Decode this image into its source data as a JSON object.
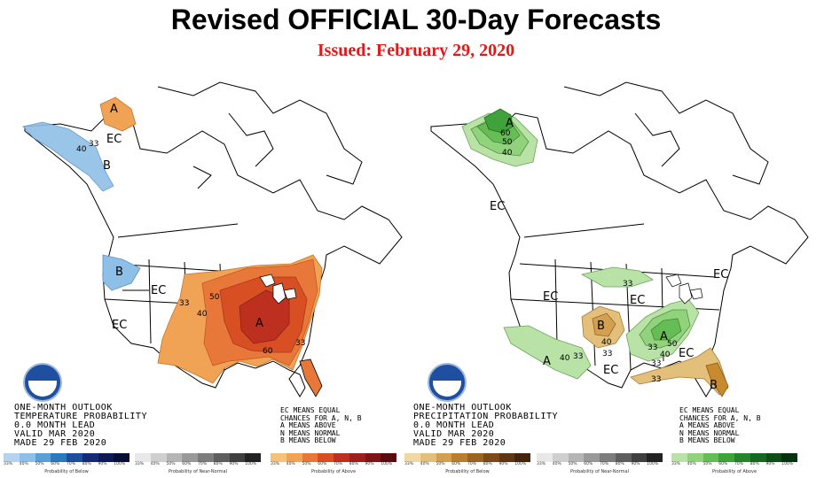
{
  "header": {
    "title": "Revised OFFICIAL 30-Day Forecasts",
    "subtitle": "Issued: February 29, 2020"
  },
  "colors": {
    "title": "#000000",
    "subtitle": "#e0191b",
    "below_normal": "#74a9d8",
    "above_normal_temp": "#e34a1f",
    "above_normal_precip": "#4db04a",
    "below_normal_precip": "#c78a2f"
  },
  "temperature_map": {
    "zones": [
      "A",
      "EC",
      "B",
      "B",
      "EC",
      "EC",
      "A"
    ],
    "contours": [
      "33",
      "40",
      "33",
      "50",
      "40",
      "33",
      "60"
    ],
    "caption": [
      "ONE-MONTH OUTLOOK",
      "TEMPERATURE PROBABILITY",
      "0.0 MONTH LEAD",
      "VALID MAR 2020",
      "MADE 29 FEB 2020"
    ],
    "legend": [
      "EC MEANS EQUAL",
      "CHANCES FOR A, N, B",
      "A MEANS ABOVE",
      "N MEANS NORMAL",
      "B MEANS BELOW"
    ]
  },
  "precipitation_map": {
    "zones": [
      "A",
      "EC",
      "EC",
      "EC",
      "B",
      "A",
      "EC",
      "A",
      "EC",
      "B",
      "EC"
    ],
    "contours": [
      "60",
      "50",
      "40",
      "33",
      "40",
      "33",
      "40",
      "33",
      "33",
      "50",
      "40",
      "33",
      "33"
    ],
    "caption": [
      "ONE-MONTH OUTLOOK",
      "PRECIPITATION PROBABILITY",
      "0.0 MONTH LEAD",
      "VALID MAR 2020",
      "MADE 29 FEB 2020"
    ],
    "legend": [
      "EC MEANS EQUAL",
      "CHANCES FOR A, N, B",
      "A MEANS ABOVE",
      "N MEANS NORMAL",
      "B MEANS BELOW"
    ]
  },
  "legend_bars": {
    "ticks": [
      "33%",
      "40%",
      "50%",
      "60%",
      "70%",
      "80%",
      "90%",
      "100%"
    ],
    "temp": {
      "below_label": "Probability of Below",
      "normal_label": "Probability of Near-Normal",
      "above_label": "Probability of Above",
      "below_colors": [
        "#b3d3ee",
        "#8ebfe6",
        "#5aa0d6",
        "#2c79bd",
        "#1b4f9e",
        "#162a78",
        "#0d1a55",
        "#080f35"
      ],
      "normal_colors": [
        "#e8e8e8",
        "#cfcfcf",
        "#b5b5b5",
        "#999999",
        "#7c7c7c",
        "#5e5e5e",
        "#404040",
        "#222222"
      ],
      "above_colors": [
        "#f5c27a",
        "#f0a255",
        "#e8773a",
        "#d94f24",
        "#bd2f1e",
        "#9c1f1c",
        "#7d1516",
        "#5a0b0d"
      ]
    },
    "precip": {
      "below_label": "Probability of Below",
      "normal_label": "Probability of Near-Normal",
      "above_label": "Probability of Above",
      "below_colors": [
        "#efd8a4",
        "#e2bf7a",
        "#d3a050",
        "#b97f30",
        "#9a6423",
        "#7c4b19",
        "#5f3611",
        "#43230a"
      ],
      "normal_colors": [
        "#e8e8e8",
        "#cfcfcf",
        "#b5b5b5",
        "#999999",
        "#7c7c7c",
        "#5e5e5e",
        "#404040",
        "#222222"
      ],
      "above_colors": [
        "#b9e2a6",
        "#91d27c",
        "#66bd56",
        "#3fa23a",
        "#26852c",
        "#166822",
        "#0c4d18",
        "#05330f"
      ]
    }
  }
}
